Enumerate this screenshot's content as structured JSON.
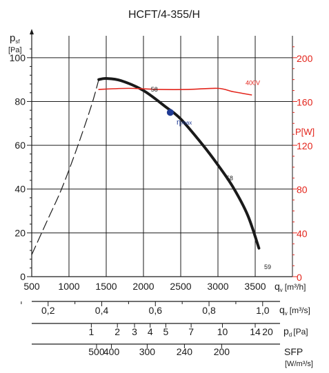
{
  "chart_data": {
    "type": "line",
    "title": "HCFT/4-355/H",
    "y_axis": {
      "label_main": "p",
      "label_sub": "sf",
      "unit": "[Pa]",
      "range": [
        0,
        110
      ],
      "ticks": [
        "0",
        "20",
        "40",
        "60",
        "80",
        "100"
      ]
    },
    "x_axis": {
      "label_main": "q",
      "label_sub": "v",
      "unit": "[m³/h]",
      "range": [
        500,
        4000
      ],
      "ticks": [
        "500",
        "1000",
        "1500",
        "2000",
        "2500",
        "3000",
        "3500"
      ]
    },
    "power_axis": {
      "label": "P[W]",
      "color": "#e3241b",
      "range": [
        0,
        220
      ],
      "ticks": [
        "0",
        "40",
        "80",
        "120",
        "160",
        "200"
      ]
    },
    "scale_qv_m3s": {
      "label_main": "q",
      "label_sub": "v",
      "unit": "[m³/s]",
      "ticks": [
        {
          "label": "0,2",
          "q": 720
        },
        {
          "label": "0,4",
          "q": 1440
        },
        {
          "label": "0,6",
          "q": 2160
        },
        {
          "label": "0,8",
          "q": 2880
        },
        {
          "label": "1,0",
          "q": 3600
        }
      ]
    },
    "scale_pd": {
      "label_main": "p",
      "label_sub": "d",
      "unit": "[Pa]",
      "ticks": [
        {
          "label": "1",
          "q": 1300
        },
        {
          "label": "2",
          "q": 1650
        },
        {
          "label": "3",
          "q": 1880
        },
        {
          "label": "4",
          "q": 2090
        },
        {
          "label": "5",
          "q": 2300
        },
        {
          "label": "7",
          "q": 2640
        },
        {
          "label": "10",
          "q": 3060
        },
        {
          "label": "14",
          "q": 3500
        },
        {
          "label": "20",
          "q": 4100
        }
      ]
    },
    "scale_sfp": {
      "label": "SFP",
      "unit": "[W/m³/s]",
      "ticks": [
        {
          "label": "500",
          "q": 1370
        },
        {
          "label": "400",
          "q": 1570
        },
        {
          "label": "300",
          "q": 2050
        },
        {
          "label": "240",
          "q": 2550
        },
        {
          "label": "200",
          "q": 3050
        }
      ]
    },
    "series": [
      {
        "style": "solid",
        "color": "#1a1a1a",
        "x": [
          1400,
          1500,
          1700,
          2000,
          2300,
          2500,
          2800,
          3000,
          3200,
          3400,
          3550
        ],
        "y": [
          90,
          90.5,
          89.5,
          85,
          77.5,
          72,
          60,
          51,
          41,
          28,
          13
        ]
      },
      {
        "style": "dashed",
        "color": "#1a1a1a",
        "x": [
          500,
          700,
          900,
          1100,
          1300,
          1400
        ],
        "y": [
          10,
          25,
          40,
          58,
          78,
          90
        ]
      },
      {
        "axis": "power",
        "color": "#e3241b",
        "x": [
          1400,
          1800,
          2200,
          2600,
          3000,
          3200,
          3450
        ],
        "y": [
          171,
          172,
          171,
          171,
          172,
          169,
          166
        ]
      }
    ],
    "annotations": [
      {
        "text": "58",
        "x": 2100,
        "y": 84.5
      },
      {
        "text": "58",
        "x": 3110,
        "y": 44
      },
      {
        "text": "59",
        "x": 3620,
        "y": 3.5
      },
      {
        "text": "400V",
        "x": 3370,
        "y": 175,
        "color": "#e3241b",
        "axis": "power"
      }
    ],
    "eta_max": {
      "label_main": "η",
      "label_sub": "max",
      "x": 2360,
      "y": 75,
      "color": "#1f3a93"
    },
    "grid": true
  }
}
